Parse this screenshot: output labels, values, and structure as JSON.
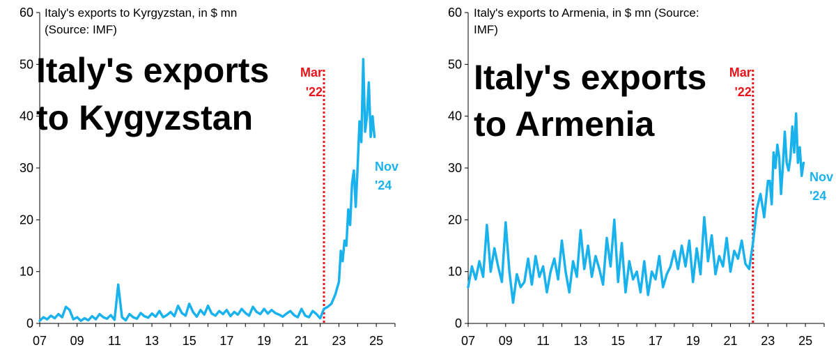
{
  "colors": {
    "series": "#1ab2ec",
    "marker": "#e8141b",
    "axis": "#000000"
  },
  "chart_data": [
    {
      "type": "line",
      "subtitle_line1": "Italy's exports to Kyrgyzstan, in $ mn",
      "subtitle_line2": "(Source: IMF)",
      "headline_line1": "Italy's exports",
      "headline_line2": "to Kygyzstan",
      "ylim": [
        0,
        60
      ],
      "yticks": [
        "0",
        "10",
        "20",
        "30",
        "40",
        "50",
        "60"
      ],
      "xlim": [
        2007,
        2026
      ],
      "xticks": [
        "07",
        "09",
        "11",
        "13",
        "15",
        "17",
        "19",
        "21",
        "23",
        "25"
      ],
      "marker_x": 2022.2,
      "marker_line1": "Mar",
      "marker_line2": "'22",
      "end_line1": "Nov",
      "end_line2": "'24",
      "series": [
        {
          "name": "Exports to Kyrgyzstan ($ mn)",
          "x": [
            2007.0,
            2007.2,
            2007.4,
            2007.6,
            2007.8,
            2008.0,
            2008.2,
            2008.4,
            2008.6,
            2008.8,
            2009.0,
            2009.2,
            2009.4,
            2009.6,
            2009.8,
            2010.0,
            2010.2,
            2010.4,
            2010.6,
            2010.8,
            2011.0,
            2011.2,
            2011.4,
            2011.6,
            2011.8,
            2012.0,
            2012.2,
            2012.4,
            2012.6,
            2012.8,
            2013.0,
            2013.2,
            2013.4,
            2013.6,
            2013.8,
            2014.0,
            2014.2,
            2014.4,
            2014.6,
            2014.8,
            2015.0,
            2015.2,
            2015.4,
            2015.6,
            2015.8,
            2016.0,
            2016.2,
            2016.4,
            2016.6,
            2016.8,
            2017.0,
            2017.2,
            2017.4,
            2017.6,
            2017.8,
            2018.0,
            2018.2,
            2018.4,
            2018.6,
            2018.8,
            2019.0,
            2019.2,
            2019.4,
            2019.6,
            2019.8,
            2020.0,
            2020.2,
            2020.4,
            2020.6,
            2020.8,
            2021.0,
            2021.2,
            2021.4,
            2021.6,
            2021.8,
            2022.0,
            2022.2,
            2022.4,
            2022.6,
            2022.8,
            2023.0,
            2023.1,
            2023.2,
            2023.3,
            2023.4,
            2023.5,
            2023.6,
            2023.7,
            2023.8,
            2023.9,
            2024.0,
            2024.1,
            2024.2,
            2024.3,
            2024.4,
            2024.5,
            2024.6,
            2024.7,
            2024.8,
            2024.9
          ],
          "values": [
            0.5,
            1.2,
            0.8,
            1.5,
            1.0,
            1.8,
            1.2,
            3.2,
            2.6,
            0.8,
            1.2,
            0.5,
            1.0,
            0.6,
            1.4,
            0.8,
            1.8,
            1.2,
            0.9,
            1.6,
            0.7,
            7.5,
            1.2,
            0.6,
            1.8,
            1.2,
            0.9,
            2.0,
            1.4,
            1.1,
            1.9,
            1.3,
            2.4,
            1.2,
            1.6,
            2.2,
            1.4,
            3.4,
            2.0,
            1.5,
            3.8,
            2.2,
            1.3,
            2.6,
            1.7,
            3.4,
            1.9,
            1.5,
            2.4,
            1.8,
            2.6,
            1.4,
            2.2,
            1.7,
            2.8,
            2.0,
            1.5,
            3.2,
            2.2,
            1.8,
            2.8,
            1.9,
            2.6,
            2.0,
            1.7,
            1.3,
            1.9,
            2.4,
            1.6,
            1.2,
            2.8,
            1.5,
            1.2,
            2.4,
            1.8,
            1.0,
            2.8,
            3.2,
            3.8,
            5.5,
            8.0,
            14.0,
            12.0,
            16.0,
            15.0,
            22.0,
            19.0,
            27.0,
            29.5,
            22.5,
            30.0,
            39.0,
            35.0,
            51.0,
            37.0,
            40.0,
            46.5,
            36.0,
            40.0,
            36.0
          ]
        }
      ]
    },
    {
      "type": "line",
      "subtitle_line1": "Italy's exports to Armenia, in $ mn (Source:",
      "subtitle_line2": "IMF)",
      "headline_line1": "Italy's exports",
      "headline_line2": "to Armenia",
      "ylim": [
        0,
        60
      ],
      "yticks": [
        "0",
        "10",
        "20",
        "30",
        "40",
        "50",
        "60"
      ],
      "xlim": [
        2007,
        2026
      ],
      "xticks": [
        "07",
        "09",
        "11",
        "13",
        "15",
        "17",
        "19",
        "21",
        "23",
        "25"
      ],
      "marker_x": 2022.2,
      "marker_line1": "Mar",
      "marker_line2": "'22",
      "end_line1": "Nov",
      "end_line2": "'24",
      "series": [
        {
          "name": "Exports to Armenia ($ mn)",
          "x": [
            2007.0,
            2007.2,
            2007.4,
            2007.6,
            2007.8,
            2008.0,
            2008.2,
            2008.4,
            2008.6,
            2008.8,
            2009.0,
            2009.2,
            2009.4,
            2009.6,
            2009.8,
            2010.0,
            2010.2,
            2010.4,
            2010.6,
            2010.8,
            2011.0,
            2011.2,
            2011.4,
            2011.6,
            2011.8,
            2012.0,
            2012.2,
            2012.4,
            2012.6,
            2012.8,
            2013.0,
            2013.2,
            2013.4,
            2013.6,
            2013.8,
            2014.0,
            2014.2,
            2014.4,
            2014.6,
            2014.8,
            2015.0,
            2015.2,
            2015.4,
            2015.6,
            2015.8,
            2016.0,
            2016.2,
            2016.4,
            2016.6,
            2016.8,
            2017.0,
            2017.2,
            2017.4,
            2017.6,
            2017.8,
            2018.0,
            2018.2,
            2018.4,
            2018.6,
            2018.8,
            2019.0,
            2019.2,
            2019.4,
            2019.6,
            2019.8,
            2020.0,
            2020.2,
            2020.4,
            2020.6,
            2020.8,
            2021.0,
            2021.2,
            2021.4,
            2021.6,
            2021.8,
            2022.0,
            2022.2,
            2022.4,
            2022.6,
            2022.8,
            2023.0,
            2023.1,
            2023.2,
            2023.3,
            2023.4,
            2023.5,
            2023.6,
            2023.7,
            2023.8,
            2023.9,
            2024.0,
            2024.1,
            2024.2,
            2024.3,
            2024.4,
            2024.5,
            2024.6,
            2024.7,
            2024.8,
            2024.9
          ],
          "values": [
            7.0,
            11.0,
            8.5,
            12.0,
            9.0,
            19.0,
            10.0,
            14.5,
            11.0,
            8.0,
            19.5,
            10.0,
            4.0,
            9.5,
            7.0,
            8.0,
            12.5,
            7.5,
            13.0,
            9.0,
            11.0,
            6.0,
            10.0,
            12.5,
            8.5,
            16.0,
            10.0,
            6.0,
            12.0,
            9.0,
            18.0,
            10.5,
            15.0,
            9.0,
            13.0,
            10.5,
            7.5,
            16.5,
            11.0,
            20.0,
            8.0,
            15.5,
            6.0,
            12.0,
            8.5,
            10.0,
            6.0,
            12.0,
            5.5,
            10.0,
            8.5,
            13.0,
            7.0,
            9.5,
            11.0,
            14.0,
            10.5,
            15.0,
            11.0,
            16.0,
            8.0,
            14.5,
            9.5,
            20.5,
            12.0,
            17.0,
            9.5,
            13.0,
            11.0,
            16.5,
            10.0,
            14.0,
            12.5,
            16.0,
            11.5,
            10.5,
            15.5,
            22.0,
            25.0,
            20.5,
            27.5,
            27.5,
            23.0,
            33.0,
            30.0,
            34.5,
            32.0,
            25.0,
            30.5,
            37.0,
            31.0,
            29.5,
            32.0,
            38.0,
            33.0,
            40.5,
            31.0,
            34.0,
            28.5,
            31.0
          ]
        }
      ]
    }
  ]
}
